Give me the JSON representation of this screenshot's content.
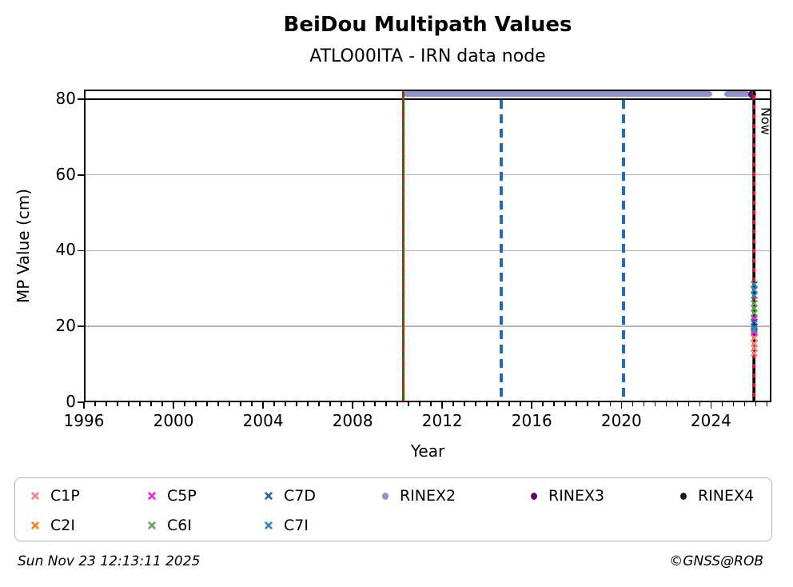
{
  "footer": {
    "timestamp": "Sun Nov 23 12:13:11 2025",
    "credit": "©GNSS@ROB"
  },
  "legend": {
    "items": [
      {
        "label": "C1P",
        "marker": "x",
        "color": "#f4827e",
        "col": 0,
        "row": 0
      },
      {
        "label": "C2I",
        "marker": "x",
        "color": "#f8830b",
        "col": 0,
        "row": 1
      },
      {
        "label": "C5P",
        "marker": "x",
        "color": "#ee22ee",
        "col": 1,
        "row": 0
      },
      {
        "label": "C6I",
        "marker": "x",
        "color": "#63a25d",
        "col": 1,
        "row": 1
      },
      {
        "label": "C7D",
        "marker": "x",
        "color": "#29629e",
        "col": 2,
        "row": 0
      },
      {
        "label": "C7I",
        "marker": "x",
        "color": "#2e86c1",
        "col": 2,
        "row": 1
      },
      {
        "label": "RINEX2",
        "marker": "dot",
        "color": "#9191ce",
        "col": 3,
        "row": 0
      },
      {
        "label": "RINEX3",
        "marker": "dot",
        "color": "#5e0f63",
        "col": 4,
        "row": 0
      },
      {
        "label": "RINEX4",
        "marker": "dot",
        "color": "#251030",
        "col": 5,
        "row": 0
      }
    ]
  },
  "chart_data": {
    "type": "scatter",
    "title": "BeiDou Multipath Values",
    "subtitle": "ATLO00ITA - IRN data node",
    "xlabel": "Year",
    "ylabel": "MP Value (cm)",
    "xlim": [
      1996,
      2026.7
    ],
    "ylim": [
      0,
      82.5
    ],
    "x_ticks": [
      1996,
      2000,
      2004,
      2008,
      2012,
      2016,
      2020,
      2024
    ],
    "x_minor_tick_step": 0.5,
    "y_ticks": [
      0,
      20,
      40,
      60,
      80
    ],
    "y_gridlines": [
      20,
      40,
      60
    ],
    "grid": "horizontal",
    "legend_position": "bottom",
    "threshold_line": {
      "y": 80,
      "color": "#000000"
    },
    "event_lines": [
      {
        "x": 2010.27,
        "style": "green-solid-red-dashed",
        "colors": [
          "#007d00",
          "#ef1010"
        ],
        "label": ""
      },
      {
        "x": 2014.62,
        "style": "blue-dashed",
        "colors": [
          "#1f6db8"
        ],
        "label": ""
      },
      {
        "x": 2020.11,
        "style": "blue-dashed",
        "colors": [
          "#1f6db8"
        ],
        "label": ""
      },
      {
        "x": 2025.93,
        "style": "green-black-red-dashed",
        "colors": [
          "#007d00",
          "#000000",
          "#ef1010"
        ],
        "label": "Now"
      }
    ],
    "rinex2_line": {
      "name": "RINEX2",
      "y": 81.3,
      "color": "#9191ce",
      "segments": [
        [
          2010.27,
          2024.05
        ],
        [
          2024.6,
          2025.72
        ]
      ]
    },
    "rinex3_point": {
      "name": "RINEX3",
      "x": 2025.85,
      "y": 81.3,
      "color": "#5e0f63"
    },
    "scatter_x": 2025.93,
    "series": [
      {
        "name": "C1P",
        "color": "#f4827e",
        "marker": "x",
        "values": [
          18.2,
          16.7,
          15.5,
          14.3
        ]
      },
      {
        "name": "C2I",
        "color": "#f8830b",
        "marker": "x",
        "values": [
          20.2
        ]
      },
      {
        "name": "C5P",
        "color": "#ee22ee",
        "marker": "x",
        "values": [
          23.4,
          19.8
        ]
      },
      {
        "name": "C6I",
        "color": "#63a25d",
        "marker": "x",
        "values": [
          27.4,
          26.1,
          24.8
        ]
      },
      {
        "name": "C7D",
        "color": "#29629e",
        "marker": "x",
        "values": [
          22.4,
          21.2
        ]
      },
      {
        "name": "C7I",
        "color": "#2e86c1",
        "marker": "x",
        "values": [
          32.3,
          31.0,
          29.4,
          20.6
        ]
      }
    ]
  }
}
